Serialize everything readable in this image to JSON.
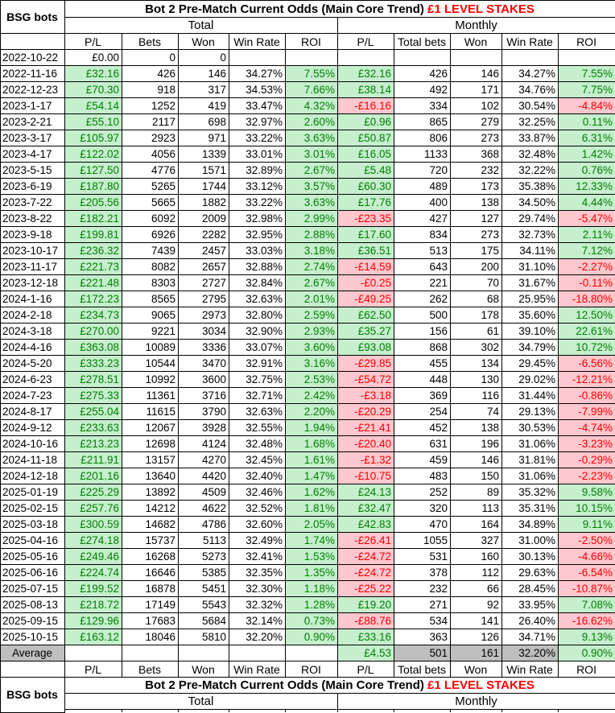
{
  "title": {
    "main": "Bot 2 Pre-Match Current Odds (Main Core Trend) ",
    "stakes": "£1 LEVEL STAKES"
  },
  "corner_label": "BSG bots",
  "sections": {
    "total": "Total",
    "monthly": "Monthly"
  },
  "columns": {
    "total": [
      "P/L",
      "Bets",
      "Won",
      "Win Rate",
      "ROI"
    ],
    "monthly": [
      "P/L",
      "Total bets",
      "Won",
      "Win Rate",
      "ROI"
    ]
  },
  "colors": {
    "positive_bg": "#C6EFCE",
    "positive_text": "#008000",
    "negative_bg": "#FFC7CE",
    "negative_text": "#FF0000",
    "average_bg": "#BFBFBF",
    "title_accent": "#FF0000"
  },
  "rows": [
    {
      "date": "2022-10-22",
      "plain": true,
      "total": [
        "£0.00",
        "0",
        "0",
        "",
        ""
      ],
      "monthly": [
        "",
        "",
        "",
        "",
        ""
      ]
    },
    {
      "date": "2022-11-16",
      "total": [
        "£32.16",
        "426",
        "146",
        "34.27%",
        "7.55%"
      ],
      "monthly": [
        "£32.16",
        "426",
        "146",
        "34.27%",
        "7.55%"
      ]
    },
    {
      "date": "2022-12-23",
      "total": [
        "£70.30",
        "918",
        "317",
        "34.53%",
        "7.66%"
      ],
      "monthly": [
        "£38.14",
        "492",
        "171",
        "34.76%",
        "7.75%"
      ]
    },
    {
      "date": "2023-1-17",
      "total": [
        "£54.14",
        "1252",
        "419",
        "33.47%",
        "4.32%"
      ],
      "monthly": [
        "-£16.16",
        "334",
        "102",
        "30.54%",
        "-4.84%"
      ]
    },
    {
      "date": "2023-2-21",
      "total": [
        "£55.10",
        "2117",
        "698",
        "32.97%",
        "2.60%"
      ],
      "monthly": [
        "£0.96",
        "865",
        "279",
        "32.25%",
        "0.11%"
      ]
    },
    {
      "date": "2023-3-17",
      "total": [
        "£105.97",
        "2923",
        "971",
        "33.22%",
        "3.63%"
      ],
      "monthly": [
        "£50.87",
        "806",
        "273",
        "33.87%",
        "6.31%"
      ]
    },
    {
      "date": "2023-4-17",
      "total": [
        "£122.02",
        "4056",
        "1339",
        "33.01%",
        "3.01%"
      ],
      "monthly": [
        "£16.05",
        "1133",
        "368",
        "32.48%",
        "1.42%"
      ]
    },
    {
      "date": "2023-5-15",
      "total": [
        "£127.50",
        "4776",
        "1571",
        "32.89%",
        "2.67%"
      ],
      "monthly": [
        "£5.48",
        "720",
        "232",
        "32.22%",
        "0.76%"
      ]
    },
    {
      "date": "2023-6-19",
      "total": [
        "£187.80",
        "5265",
        "1744",
        "33.12%",
        "3.57%"
      ],
      "monthly": [
        "£60.30",
        "489",
        "173",
        "35.38%",
        "12.33%"
      ]
    },
    {
      "date": "2023-7-22",
      "total": [
        "£205.56",
        "5665",
        "1882",
        "33.22%",
        "3.63%"
      ],
      "monthly": [
        "£17.76",
        "400",
        "138",
        "34.50%",
        "4.44%"
      ]
    },
    {
      "date": "2023-8-22",
      "total": [
        "£182.21",
        "6092",
        "2009",
        "32.98%",
        "2.99%"
      ],
      "monthly": [
        "-£23.35",
        "427",
        "127",
        "29.74%",
        "-5.47%"
      ]
    },
    {
      "date": "2023-9-18",
      "total": [
        "£199.81",
        "6926",
        "2282",
        "32.95%",
        "2.88%"
      ],
      "monthly": [
        "£17.60",
        "834",
        "273",
        "32.73%",
        "2.11%"
      ]
    },
    {
      "date": "2023-10-17",
      "total": [
        "£236.32",
        "7439",
        "2457",
        "33.03%",
        "3.18%"
      ],
      "monthly": [
        "£36.51",
        "513",
        "175",
        "34.11%",
        "7.12%"
      ]
    },
    {
      "date": "2023-11-17",
      "total": [
        "£221.73",
        "8082",
        "2657",
        "32.88%",
        "2.74%"
      ],
      "monthly": [
        "-£14.59",
        "643",
        "200",
        "31.10%",
        "-2.27%"
      ]
    },
    {
      "date": "2023-12-18",
      "total": [
        "£221.48",
        "8303",
        "2727",
        "32.84%",
        "2.67%"
      ],
      "monthly": [
        "-£0.25",
        "221",
        "70",
        "31.67%",
        "-0.11%"
      ]
    },
    {
      "date": "2024-1-16",
      "total": [
        "£172.23",
        "8565",
        "2795",
        "32.63%",
        "2.01%"
      ],
      "monthly": [
        "-£49.25",
        "262",
        "68",
        "25.95%",
        "-18.80%"
      ]
    },
    {
      "date": "2024-2-18",
      "total": [
        "£234.73",
        "9065",
        "2973",
        "32.80%",
        "2.59%"
      ],
      "monthly": [
        "£62.50",
        "500",
        "178",
        "35.60%",
        "12.50%"
      ]
    },
    {
      "date": "2024-3-18",
      "total": [
        "£270.00",
        "9221",
        "3034",
        "32.90%",
        "2.93%"
      ],
      "monthly": [
        "£35.27",
        "156",
        "61",
        "39.10%",
        "22.61%"
      ]
    },
    {
      "date": "2024-4-16",
      "total": [
        "£363.08",
        "10089",
        "3336",
        "33.07%",
        "3.60%"
      ],
      "monthly": [
        "£93.08",
        "868",
        "302",
        "34.79%",
        "10.72%"
      ]
    },
    {
      "date": "2024-5-20",
      "total": [
        "£333.23",
        "10544",
        "3470",
        "32.91%",
        "3.16%"
      ],
      "monthly": [
        "-£29.85",
        "455",
        "134",
        "29.45%",
        "-6.56%"
      ]
    },
    {
      "date": "2024-6-23",
      "total": [
        "£278.51",
        "10992",
        "3600",
        "32.75%",
        "2.53%"
      ],
      "monthly": [
        "-£54.72",
        "448",
        "130",
        "29.02%",
        "-12.21%"
      ]
    },
    {
      "date": "2024-7-23",
      "total": [
        "£275.33",
        "11361",
        "3716",
        "32.71%",
        "2.42%"
      ],
      "monthly": [
        "-£3.18",
        "369",
        "116",
        "31.44%",
        "-0.86%"
      ]
    },
    {
      "date": "2024-8-17",
      "total": [
        "£255.04",
        "11615",
        "3790",
        "32.63%",
        "2.20%"
      ],
      "monthly": [
        "-£20.29",
        "254",
        "74",
        "29.13%",
        "-7.99%"
      ]
    },
    {
      "date": "2024-9-12",
      "total": [
        "£233.63",
        "12067",
        "3928",
        "32.55%",
        "1.94%"
      ],
      "monthly": [
        "-£21.41",
        "452",
        "138",
        "30.53%",
        "-4.74%"
      ]
    },
    {
      "date": "2024-10-16",
      "total": [
        "£213.23",
        "12698",
        "4124",
        "32.48%",
        "1.68%"
      ],
      "monthly": [
        "-£20.40",
        "631",
        "196",
        "31.06%",
        "-3.23%"
      ]
    },
    {
      "date": "2024-11-18",
      "total": [
        "£211.91",
        "13157",
        "4270",
        "32.45%",
        "1.61%"
      ],
      "monthly": [
        "-£1.32",
        "459",
        "146",
        "31.81%",
        "-0.29%"
      ]
    },
    {
      "date": "2024-12-18",
      "total": [
        "£201.16",
        "13640",
        "4420",
        "32.40%",
        "1.47%"
      ],
      "monthly": [
        "-£10.75",
        "483",
        "150",
        "31.06%",
        "-2.23%"
      ]
    },
    {
      "date": "2025-01-19",
      "total": [
        "£225.29",
        "13892",
        "4509",
        "32.46%",
        "1.62%"
      ],
      "monthly": [
        "£24.13",
        "252",
        "89",
        "35.32%",
        "9.58%"
      ]
    },
    {
      "date": "2025-02-15",
      "total": [
        "£257.76",
        "14212",
        "4622",
        "32.52%",
        "1.81%"
      ],
      "monthly": [
        "£32.47",
        "320",
        "113",
        "35.31%",
        "10.15%"
      ]
    },
    {
      "date": "2025-03-18",
      "total": [
        "£300.59",
        "14682",
        "4786",
        "32.60%",
        "2.05%"
      ],
      "monthly": [
        "£42.83",
        "470",
        "164",
        "34.89%",
        "9.11%"
      ]
    },
    {
      "date": "2025-04-16",
      "total": [
        "£274.18",
        "15737",
        "5113",
        "32.49%",
        "1.74%"
      ],
      "monthly": [
        "-£26.41",
        "1055",
        "327",
        "31.00%",
        "-2.50%"
      ]
    },
    {
      "date": "2025-05-16",
      "total": [
        "£249.46",
        "16268",
        "5273",
        "32.41%",
        "1.53%"
      ],
      "monthly": [
        "-£24.72",
        "531",
        "160",
        "30.13%",
        "-4.66%"
      ]
    },
    {
      "date": "2025-06-16",
      "total": [
        "£224.74",
        "16646",
        "5385",
        "32.35%",
        "1.35%"
      ],
      "monthly": [
        "-£24.72",
        "378",
        "112",
        "29.63%",
        "-6.54%"
      ]
    },
    {
      "date": "2025-07-15",
      "total": [
        "£199.52",
        "16878",
        "5451",
        "32.30%",
        "1.18%"
      ],
      "monthly": [
        "-£25.22",
        "232",
        "66",
        "28.45%",
        "-10.87%"
      ]
    },
    {
      "date": "2025-08-13",
      "total": [
        "£218.72",
        "17149",
        "5543",
        "32.32%",
        "1.28%"
      ],
      "monthly": [
        "£19.20",
        "271",
        "92",
        "33.95%",
        "7.08%"
      ]
    },
    {
      "date": "2025-09-15",
      "total": [
        "£129.96",
        "17683",
        "5684",
        "32.14%",
        "0.73%"
      ],
      "monthly": [
        "-£88.76",
        "534",
        "141",
        "26.40%",
        "-16.62%"
      ]
    },
    {
      "date": "2025-10-15",
      "total": [
        "£163.12",
        "18046",
        "5810",
        "32.20%",
        "0.90%"
      ],
      "monthly": [
        "£33.16",
        "363",
        "126",
        "34.71%",
        "9.13%"
      ]
    }
  ],
  "average": {
    "label": "Average",
    "total": [
      "",
      "",
      "",
      "",
      ""
    ],
    "monthly": [
      "£4.53",
      "501",
      "161",
      "32.20%",
      "0.90%"
    ],
    "monthly_styles": [
      "green",
      "gray",
      "gray",
      "gray",
      "green"
    ]
  }
}
